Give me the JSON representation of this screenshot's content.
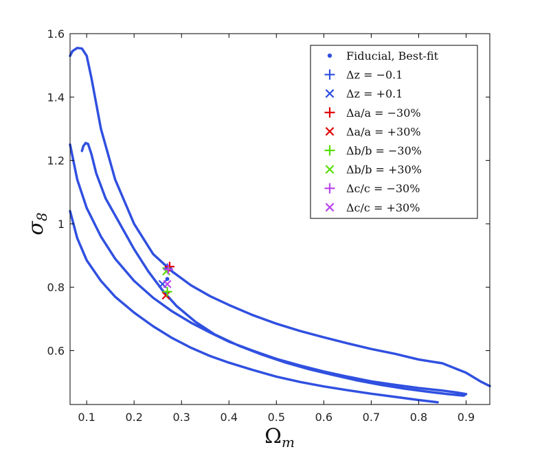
{
  "chart_data": {
    "type": "scatter",
    "xlabel": "Ω",
    "xlabel_sub": "m",
    "ylabel": "σ",
    "ylabel_sub": "8",
    "xlim": [
      0.065,
      0.95
    ],
    "ylim": [
      0.43,
      1.6
    ],
    "xticks": [
      0.1,
      0.2,
      0.3,
      0.4,
      0.5,
      0.6,
      0.7,
      0.8,
      0.9
    ],
    "yticks": [
      0.6,
      0.8,
      1.0,
      1.2,
      1.4,
      1.6
    ],
    "ytick_labels": [
      "0.6",
      "0.8",
      "1",
      "1.2",
      "1.4",
      "1.6"
    ],
    "grid": false,
    "legend_position": "top-right",
    "contours": [
      {
        "level": "inner",
        "color": "#3050e0",
        "points": [
          [
            0.065,
            1.25
          ],
          [
            0.08,
            1.14
          ],
          [
            0.1,
            1.05
          ],
          [
            0.13,
            0.96
          ],
          [
            0.16,
            0.89
          ],
          [
            0.2,
            0.82
          ],
          [
            0.24,
            0.767
          ],
          [
            0.28,
            0.724
          ],
          [
            0.32,
            0.688
          ],
          [
            0.36,
            0.657
          ],
          [
            0.4,
            0.628
          ],
          [
            0.45,
            0.6
          ],
          [
            0.5,
            0.574
          ],
          [
            0.55,
            0.553
          ],
          [
            0.6,
            0.534
          ],
          [
            0.65,
            0.518
          ],
          [
            0.7,
            0.503
          ],
          [
            0.75,
            0.492
          ],
          [
            0.8,
            0.482
          ],
          [
            0.85,
            0.474
          ],
          [
            0.88,
            0.468
          ],
          [
            0.9,
            0.463
          ],
          [
            0.895,
            0.458
          ],
          [
            0.86,
            0.463
          ],
          [
            0.82,
            0.47
          ],
          [
            0.77,
            0.48
          ],
          [
            0.72,
            0.492
          ],
          [
            0.67,
            0.506
          ],
          [
            0.62,
            0.523
          ],
          [
            0.57,
            0.541
          ],
          [
            0.52,
            0.562
          ],
          [
            0.47,
            0.587
          ],
          [
            0.42,
            0.616
          ],
          [
            0.37,
            0.651
          ],
          [
            0.33,
            0.69
          ],
          [
            0.29,
            0.74
          ],
          [
            0.26,
            0.79
          ],
          [
            0.23,
            0.85
          ],
          [
            0.2,
            0.92
          ],
          [
            0.17,
            1.0
          ],
          [
            0.14,
            1.08
          ],
          [
            0.12,
            1.16
          ],
          [
            0.11,
            1.22
          ],
          [
            0.103,
            1.252
          ],
          [
            0.098,
            1.255
          ],
          [
            0.093,
            1.245
          ],
          [
            0.09,
            1.23
          ]
        ]
      },
      {
        "level": "outer",
        "color": "#3050e0",
        "points": [
          [
            0.065,
            1.53
          ],
          [
            0.07,
            1.545
          ],
          [
            0.08,
            1.555
          ],
          [
            0.09,
            1.553
          ],
          [
            0.1,
            1.53
          ],
          [
            0.11,
            1.46
          ],
          [
            0.13,
            1.3
          ],
          [
            0.16,
            1.14
          ],
          [
            0.2,
            1.0
          ],
          [
            0.24,
            0.905
          ],
          [
            0.28,
            0.85
          ],
          [
            0.32,
            0.806
          ],
          [
            0.36,
            0.772
          ],
          [
            0.4,
            0.744
          ],
          [
            0.45,
            0.712
          ],
          [
            0.5,
            0.685
          ],
          [
            0.55,
            0.662
          ],
          [
            0.6,
            0.642
          ],
          [
            0.65,
            0.623
          ],
          [
            0.7,
            0.605
          ],
          [
            0.75,
            0.59
          ],
          [
            0.8,
            0.572
          ],
          [
            0.85,
            0.56
          ],
          [
            0.9,
            0.53
          ],
          [
            0.93,
            0.503
          ],
          [
            0.95,
            0.488
          ]
        ]
      },
      {
        "level": "outer-lower",
        "color": "#3050e0",
        "points": [
          [
            0.065,
            1.04
          ],
          [
            0.08,
            0.955
          ],
          [
            0.1,
            0.885
          ],
          [
            0.13,
            0.82
          ],
          [
            0.16,
            0.77
          ],
          [
            0.2,
            0.72
          ],
          [
            0.24,
            0.677
          ],
          [
            0.28,
            0.64
          ],
          [
            0.32,
            0.609
          ],
          [
            0.36,
            0.583
          ],
          [
            0.4,
            0.562
          ],
          [
            0.45,
            0.539
          ],
          [
            0.5,
            0.518
          ],
          [
            0.55,
            0.501
          ],
          [
            0.6,
            0.487
          ],
          [
            0.65,
            0.475
          ],
          [
            0.7,
            0.464
          ],
          [
            0.75,
            0.454
          ],
          [
            0.8,
            0.444
          ],
          [
            0.84,
            0.437
          ]
        ]
      }
    ],
    "series": [
      {
        "name": "Fiducial, Best-fit",
        "marker": "dot",
        "color": "#3050e0",
        "points": [
          [
            0.27,
            0.826
          ]
        ]
      },
      {
        "name": "Δz = −0.1",
        "marker": "plus",
        "color": "#3050e0",
        "points": [
          [
            0.27,
            0.86
          ]
        ]
      },
      {
        "name": "Δz = +0.1",
        "marker": "x",
        "color": "#3050e0",
        "points": [
          [
            0.26,
            0.81
          ]
        ]
      },
      {
        "name": "Δa/a = −30%",
        "marker": "plus",
        "color": "#e00000",
        "points": [
          [
            0.275,
            0.865
          ]
        ]
      },
      {
        "name": "Δa/a = +30%",
        "marker": "x",
        "color": "#e00000",
        "points": [
          [
            0.267,
            0.774
          ]
        ]
      },
      {
        "name": "Δb/b = −30%",
        "marker": "plus",
        "color": "#55dd00",
        "points": [
          [
            0.27,
            0.786
          ]
        ]
      },
      {
        "name": "Δb/b = +30%",
        "marker": "x",
        "color": "#55dd00",
        "points": [
          [
            0.268,
            0.85
          ]
        ]
      },
      {
        "name": "Δc/c = −30%",
        "marker": "plus",
        "color": "#bb44ee",
        "points": [
          [
            0.272,
            0.856
          ]
        ]
      },
      {
        "name": "Δc/c = +30%",
        "marker": "x",
        "color": "#bb44ee",
        "points": [
          [
            0.27,
            0.81
          ]
        ]
      }
    ]
  }
}
